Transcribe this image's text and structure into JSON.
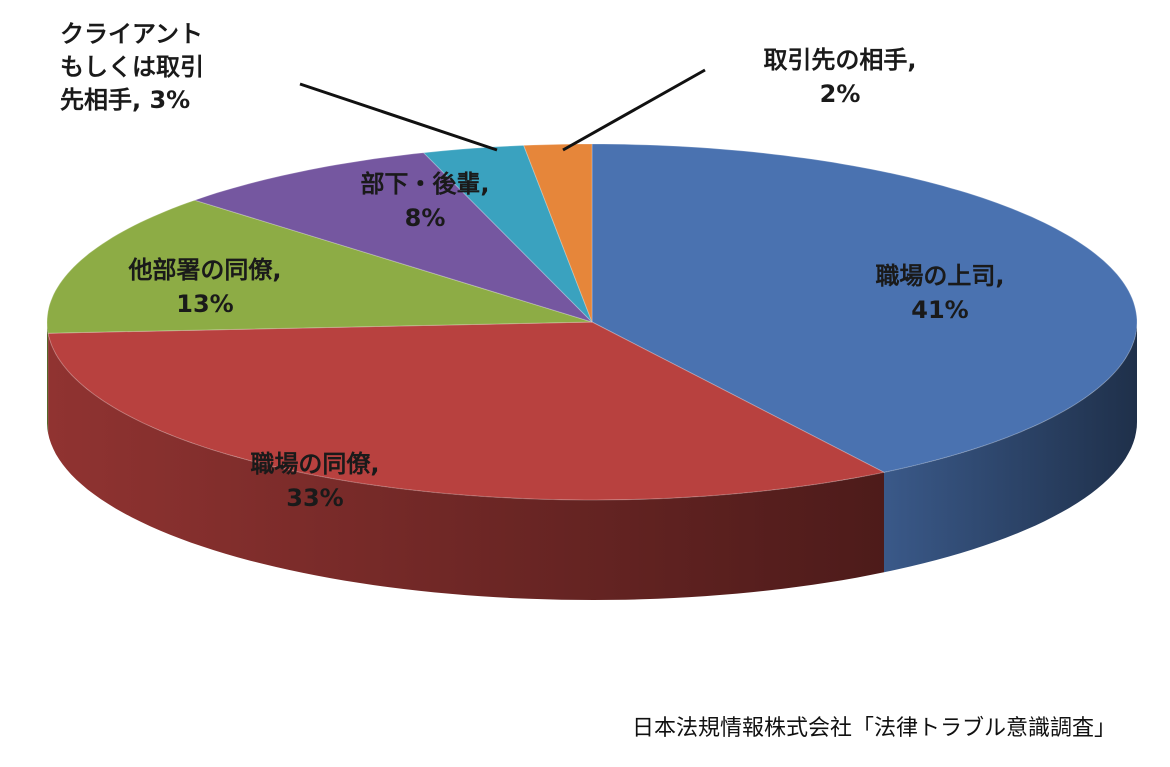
{
  "chart_data": {
    "type": "pie",
    "style": "3d",
    "categories": [
      "職場の上司",
      "職場の同僚",
      "他部署の同僚",
      "部下・後輩",
      "クライアントもしくは取引先相手",
      "取引先の相手"
    ],
    "values": [
      41,
      33,
      13,
      8,
      3,
      2
    ],
    "unit": "%",
    "colors": [
      "#4a72b0",
      "#b8413f",
      "#8dac45",
      "#7557a0",
      "#3aa2bf",
      "#e6863a"
    ],
    "labels": [
      {
        "lines": [
          "職場の上司,",
          "41%"
        ]
      },
      {
        "lines": [
          "職場の同僚,",
          "33%"
        ]
      },
      {
        "lines": [
          "他部署の同僚,",
          "13%"
        ]
      },
      {
        "lines": [
          "部下・後輩,",
          "8%"
        ]
      },
      {
        "lines": [
          "クライアント",
          "もしくは取引",
          "先相手, 3%"
        ]
      },
      {
        "lines": [
          "取引先の相手,",
          "2%"
        ]
      }
    ]
  },
  "source_note": "日本法規情報株式会社「法律トラブル意識調査」"
}
